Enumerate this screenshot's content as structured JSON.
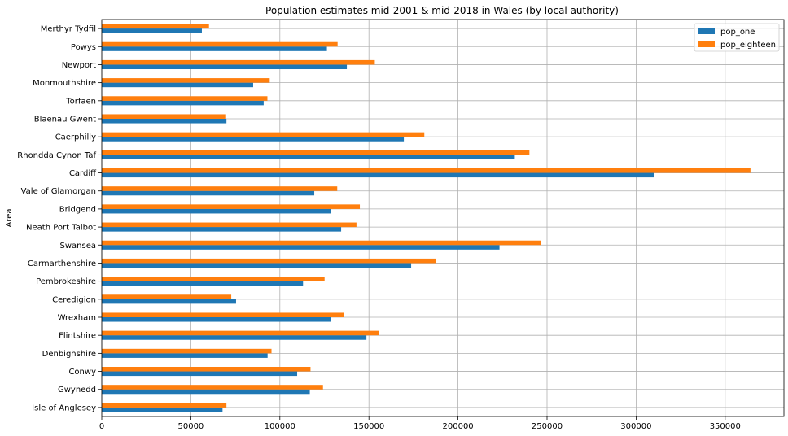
{
  "chart_data": {
    "type": "bar",
    "orientation": "horizontal",
    "title": "Population estimates mid-2001 & mid-2018 in Wales (by local authority)",
    "ylabel": "Area",
    "xlabel": "",
    "xlim": [
      0,
      383000
    ],
    "xticks": [
      0,
      50000,
      100000,
      150000,
      200000,
      250000,
      300000,
      350000
    ],
    "grid": true,
    "legend_position": "top-right",
    "categories": [
      "Isle of Anglesey",
      "Gwynedd",
      "Conwy",
      "Denbighshire",
      "Flintshire",
      "Wrexham",
      "Ceredigion",
      "Pembrokeshire",
      "Carmarthenshire",
      "Swansea",
      "Neath Port Talbot",
      "Bridgend",
      "Vale of Glamorgan",
      "Cardiff",
      "Rhondda Cynon Taf",
      "Caerphilly",
      "Blaenau Gwent",
      "Torfaen",
      "Monmouthshire",
      "Newport",
      "Powys",
      "Merthyr Tydfil"
    ],
    "series": [
      {
        "name": "pop_one",
        "color": "#1f77b4",
        "values": [
          67800,
          116800,
          109700,
          93100,
          148600,
          128500,
          75400,
          113000,
          173700,
          223300,
          134400,
          128600,
          119300,
          310000,
          231900,
          169600,
          70000,
          90900,
          85000,
          137600,
          126400,
          56200
        ]
      },
      {
        "name": "pop_eighteen",
        "color": "#ff7f0e",
        "values": [
          70000,
          124200,
          117200,
          95300,
          155600,
          136100,
          72700,
          125100,
          187600,
          246500,
          143000,
          144900,
          132200,
          364200,
          240100,
          181100,
          69800,
          93000,
          94300,
          153300,
          132400,
          60200
        ]
      }
    ]
  }
}
